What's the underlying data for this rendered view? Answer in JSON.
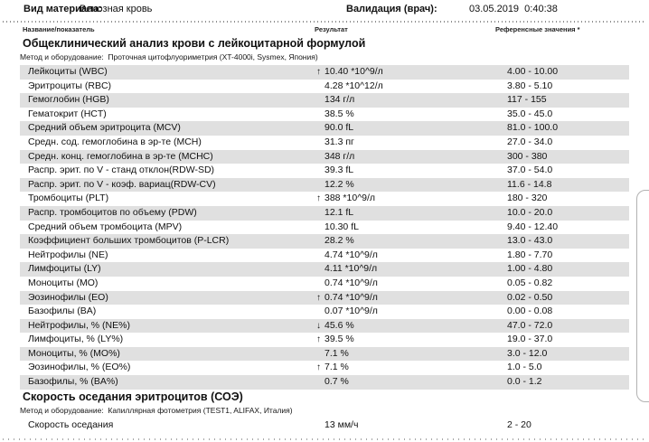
{
  "header": {
    "material_label": "Вид материала:",
    "material_value": "Венозная кровь",
    "validation_label": "Валидация (врач):",
    "validation_datetime": "03.05.2019  0:40:38"
  },
  "columns": {
    "name": "Название/показатель",
    "result": "Результат",
    "reference": "Референсные значения *"
  },
  "sections": [
    {
      "title": "Общеклинический анализ крови с лейкоцитарной формулой",
      "method": "Метод и оборудование:  Проточная цитофлуориметрия (XT-4000i, Sysmex, Япония)",
      "striped": true,
      "rows": [
        {
          "name": "Лейкоциты (WBC)",
          "flag": "↑",
          "result": "10.40 *10^9/л",
          "reference": "4.00 - 10.00"
        },
        {
          "name": "Эритроциты (RBC)",
          "flag": "",
          "result": "4.28 *10^12/л",
          "reference": "3.80 - 5.10"
        },
        {
          "name": "Гемоглобин (HGB)",
          "flag": "",
          "result": "134 г/л",
          "reference": "117 - 155"
        },
        {
          "name": "Гематокрит (HCT)",
          "flag": "",
          "result": "38.5 %",
          "reference": "35.0 - 45.0"
        },
        {
          "name": "Средний объем эритроцита (MCV)",
          "flag": "",
          "result": "90.0 fL",
          "reference": "81.0 - 100.0"
        },
        {
          "name": "Средн. сод. гемоглобина в эр-те (MCH)",
          "flag": "",
          "result": "31.3 пг",
          "reference": "27.0 - 34.0"
        },
        {
          "name": "Средн. конц. гемоглобина в эр-те (MCHC)",
          "flag": "",
          "result": "348 г/л",
          "reference": "300 - 380"
        },
        {
          "name": "Распр. эрит. по V - станд отклон(RDW-SD)",
          "flag": "",
          "result": "39.3 fL",
          "reference": "37.0 - 54.0"
        },
        {
          "name": "Распр. эрит. по V - коэф. вариац(RDW-CV)",
          "flag": "",
          "result": "12.2 %",
          "reference": "11.6 - 14.8"
        },
        {
          "name": "Тромбоциты (PLT)",
          "flag": "↑",
          "result": "388 *10^9/л",
          "reference": "180 - 320"
        },
        {
          "name": "Распр. тромбоцитов по объему (PDW)",
          "flag": "",
          "result": "12.1 fL",
          "reference": "10.0 - 20.0"
        },
        {
          "name": "Средний объем тромбоцита (MPV)",
          "flag": "",
          "result": "10.30 fL",
          "reference": "9.40 - 12.40"
        },
        {
          "name": "Коэффициент больших тромбоцитов (P-LCR)",
          "flag": "",
          "result": "28.2 %",
          "reference": "13.0 - 43.0"
        },
        {
          "name": "Нейтрофилы (NE)",
          "flag": "",
          "result": "4.74 *10^9/л",
          "reference": "1.80 - 7.70"
        },
        {
          "name": "Лимфоциты (LY)",
          "flag": "",
          "result": "4.11 *10^9/л",
          "reference": "1.00 - 4.80"
        },
        {
          "name": "Моноциты (MO)",
          "flag": "",
          "result": "0.74 *10^9/л",
          "reference": "0.05 - 0.82"
        },
        {
          "name": "Эозинофилы (EO)",
          "flag": "↑",
          "result": "0.74 *10^9/л",
          "reference": "0.02 - 0.50"
        },
        {
          "name": "Базофилы (BA)",
          "flag": "",
          "result": "0.07 *10^9/л",
          "reference": "0.00 - 0.08"
        },
        {
          "name": "Нейтрофилы, % (NE%)",
          "flag": "↓",
          "result": "45.6 %",
          "reference": "47.0 - 72.0"
        },
        {
          "name": "Лимфоциты, % (LY%)",
          "flag": "↑",
          "result": "39.5 %",
          "reference": "19.0 - 37.0"
        },
        {
          "name": "Моноциты, % (MO%)",
          "flag": "",
          "result": "7.1 %",
          "reference": "3.0 - 12.0"
        },
        {
          "name": "Эозинофилы, % (EO%)",
          "flag": "↑",
          "result": "7.1 %",
          "reference": "1.0 - 5.0"
        },
        {
          "name": "Базофилы, % (BA%)",
          "flag": "",
          "result": "0.7 %",
          "reference": "0.0 - 1.2"
        }
      ]
    },
    {
      "title": "Скорость оседания эритроцитов (СОЭ)",
      "method": "Метод и оборудование:  Капиллярная фотометрия (TEST1, ALIFAX, Италия)",
      "striped": false,
      "rows": [
        {
          "name": "Скорость оседания",
          "flag": "",
          "result": "13 мм/ч",
          "reference": "2 - 20"
        }
      ]
    }
  ],
  "colors": {
    "stripe": "#e0e0e0",
    "text": "#111111",
    "edge_panel_border": "#b2b2b2"
  }
}
